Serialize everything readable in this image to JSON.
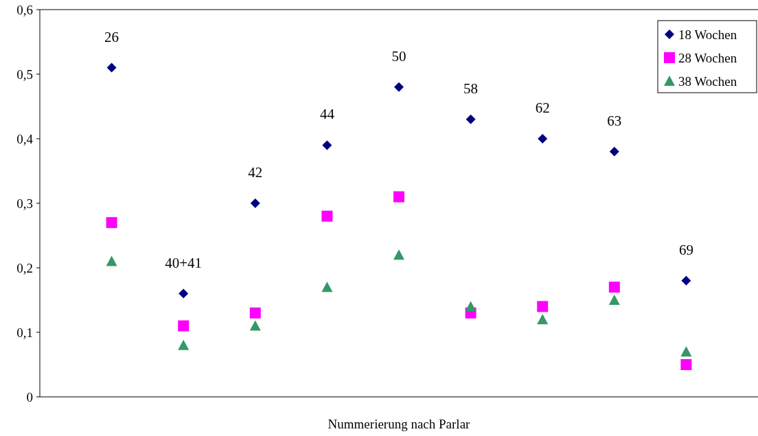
{
  "chart_data": {
    "type": "scatter",
    "xlabel": "Nummerierung nach Parlar",
    "categories": [
      "26",
      "40+41",
      "42",
      "44",
      "50",
      "58",
      "62",
      "63",
      "69"
    ],
    "series": [
      {
        "name": "18 Wochen",
        "color": "#000080",
        "marker": "diamond",
        "values": [
          0.51,
          0.16,
          0.3,
          0.39,
          0.48,
          0.43,
          0.4,
          0.38,
          0.18
        ]
      },
      {
        "name": "28 Wochen",
        "color": "#ff00ff",
        "marker": "square",
        "values": [
          0.27,
          0.11,
          0.13,
          0.28,
          0.31,
          0.13,
          0.14,
          0.17,
          0.05
        ]
      },
      {
        "name": "38 Wochen",
        "color": "#339966",
        "marker": "triangle",
        "values": [
          0.21,
          0.08,
          0.11,
          0.17,
          0.22,
          0.14,
          0.12,
          0.15,
          0.07
        ]
      }
    ],
    "ylim": [
      0,
      0.6
    ],
    "yticks": [
      {
        "value": 0,
        "label": "0"
      },
      {
        "value": 0.1,
        "label": "0,1"
      },
      {
        "value": 0.2,
        "label": "0,2"
      },
      {
        "value": 0.3,
        "label": "0,3"
      },
      {
        "value": 0.4,
        "label": "0,4"
      },
      {
        "value": 0.5,
        "label": "0,5"
      },
      {
        "value": 0.6,
        "label": "0,6"
      }
    ],
    "grid": false,
    "legend": "top right"
  }
}
